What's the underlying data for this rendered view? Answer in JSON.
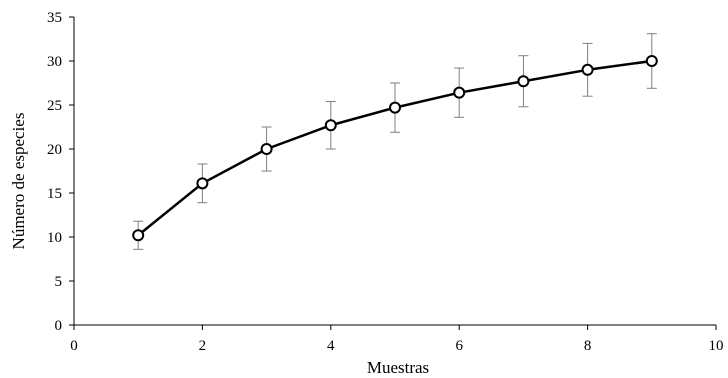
{
  "chart_data": {
    "type": "line",
    "title": "",
    "xlabel": "Muestras",
    "ylabel": "Número de especies",
    "xlim": [
      0,
      10
    ],
    "ylim": [
      0,
      35
    ],
    "x_ticks": [
      0,
      2,
      4,
      6,
      8,
      10
    ],
    "y_ticks": [
      0,
      5,
      10,
      15,
      20,
      25,
      30,
      35
    ],
    "grid": false,
    "legend": "none",
    "series": [
      {
        "x": [
          1,
          2,
          3,
          4,
          5,
          6,
          7,
          8,
          9
        ],
        "values": [
          10.2,
          16.1,
          20.0,
          22.7,
          24.7,
          26.4,
          27.7,
          29.0,
          30.0
        ],
        "error": [
          1.6,
          2.2,
          2.5,
          2.7,
          2.8,
          2.8,
          2.9,
          3.0,
          3.1
        ],
        "color": "#000000",
        "marker": "open-circle"
      }
    ]
  }
}
